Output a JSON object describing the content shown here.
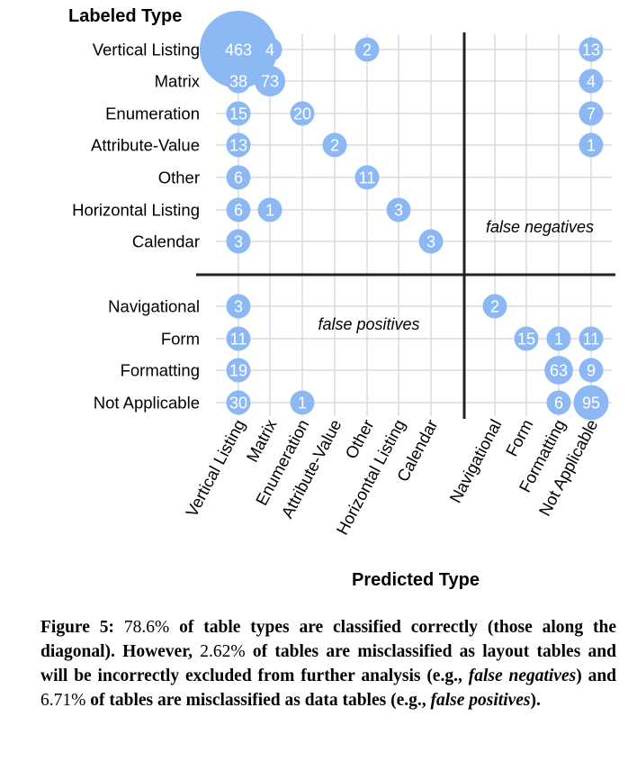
{
  "chart_data": {
    "type": "bubble-matrix",
    "title": "",
    "ylabel": "Labeled Type",
    "xlabel": "Predicted Type",
    "rows": [
      "Vertical Listing",
      "Matrix",
      "Enumeration",
      "Attribute-Value",
      "Other",
      "Horizontal Listing",
      "Calendar",
      "Navigational",
      "Form",
      "Formatting",
      "Not Applicable"
    ],
    "columns": [
      "Vertical Listing",
      "Matrix",
      "Enumeration",
      "Attribute-Value",
      "Other",
      "Horizontal Listing",
      "Calendar",
      "Navigational",
      "Form",
      "Formatting",
      "Not Applicable"
    ],
    "cells": [
      {
        "row": "Vertical Listing",
        "col": "Vertical Listing",
        "value": 463
      },
      {
        "row": "Vertical Listing",
        "col": "Matrix",
        "value": 4
      },
      {
        "row": "Vertical Listing",
        "col": "Other",
        "value": 2
      },
      {
        "row": "Vertical Listing",
        "col": "Not Applicable",
        "value": 13
      },
      {
        "row": "Matrix",
        "col": "Vertical Listing",
        "value": 38
      },
      {
        "row": "Matrix",
        "col": "Matrix",
        "value": 73
      },
      {
        "row": "Matrix",
        "col": "Not Applicable",
        "value": 4
      },
      {
        "row": "Enumeration",
        "col": "Vertical Listing",
        "value": 15
      },
      {
        "row": "Enumeration",
        "col": "Enumeration",
        "value": 20
      },
      {
        "row": "Enumeration",
        "col": "Not Applicable",
        "value": 7
      },
      {
        "row": "Attribute-Value",
        "col": "Vertical Listing",
        "value": 13
      },
      {
        "row": "Attribute-Value",
        "col": "Attribute-Value",
        "value": 2
      },
      {
        "row": "Attribute-Value",
        "col": "Not Applicable",
        "value": 1
      },
      {
        "row": "Other",
        "col": "Vertical Listing",
        "value": 6
      },
      {
        "row": "Other",
        "col": "Other",
        "value": 11
      },
      {
        "row": "Horizontal Listing",
        "col": "Vertical Listing",
        "value": 6
      },
      {
        "row": "Horizontal Listing",
        "col": "Matrix",
        "value": 1
      },
      {
        "row": "Horizontal Listing",
        "col": "Horizontal Listing",
        "value": 3
      },
      {
        "row": "Calendar",
        "col": "Vertical Listing",
        "value": 3
      },
      {
        "row": "Calendar",
        "col": "Calendar",
        "value": 3
      },
      {
        "row": "Navigational",
        "col": "Vertical Listing",
        "value": 3
      },
      {
        "row": "Navigational",
        "col": "Navigational",
        "value": 2
      },
      {
        "row": "Form",
        "col": "Vertical Listing",
        "value": 11
      },
      {
        "row": "Form",
        "col": "Form",
        "value": 15
      },
      {
        "row": "Form",
        "col": "Formatting",
        "value": 1
      },
      {
        "row": "Form",
        "col": "Not Applicable",
        "value": 11
      },
      {
        "row": "Formatting",
        "col": "Vertical Listing",
        "value": 19
      },
      {
        "row": "Formatting",
        "col": "Formatting",
        "value": 63
      },
      {
        "row": "Formatting",
        "col": "Not Applicable",
        "value": 9
      },
      {
        "row": "Not Applicable",
        "col": "Vertical Listing",
        "value": 30
      },
      {
        "row": "Not Applicable",
        "col": "Enumeration",
        "value": 1
      },
      {
        "row": "Not Applicable",
        "col": "Formatting",
        "value": 6
      },
      {
        "row": "Not Applicable",
        "col": "Not Applicable",
        "value": 95
      }
    ],
    "annotations": [
      "false negatives",
      "false positives"
    ],
    "bubble_color": "#8cb8f4"
  },
  "caption": {
    "label": "Figure 5:",
    "pct_correct": "78.6%",
    "part1": " of table types are classified correctly (those along the diagonal). However, ",
    "pct_layout": "2.62%",
    "part2": " of tables are misclassified as layout tables and will be incorrectly excluded from further analysis (e.g., ",
    "fn": "false negatives",
    "part3": ") and ",
    "pct_data": "6.71%",
    "part4": " of tables are misclassified as data tables (e.g., ",
    "fp": "false positives",
    "part5": ")."
  }
}
